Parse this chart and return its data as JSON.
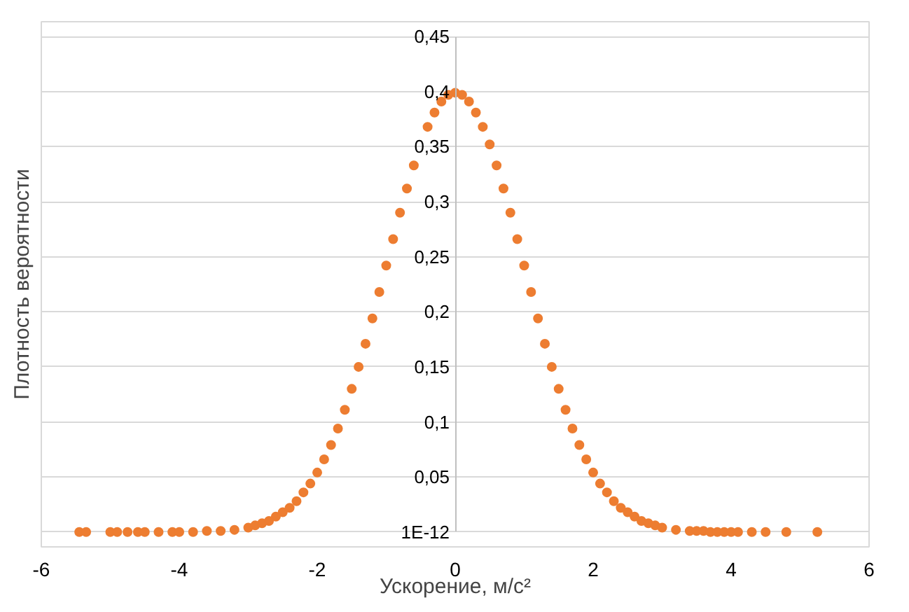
{
  "chart_data": {
    "type": "scatter",
    "xlabel": "Ускорение, м/с²",
    "ylabel": "Плотность вероятности",
    "xlim": [
      -6,
      6
    ],
    "xticks": [
      -6,
      -4,
      -2,
      0,
      2,
      4,
      6
    ],
    "ylim": [
      0,
      0.45
    ],
    "yticks": [
      {
        "value": 1e-12,
        "label": "1E-12"
      },
      {
        "value": 0.05,
        "label": "0,05"
      },
      {
        "value": 0.1,
        "label": "0,1"
      },
      {
        "value": 0.15,
        "label": "0,15"
      },
      {
        "value": 0.2,
        "label": "0,2"
      },
      {
        "value": 0.25,
        "label": "0,25"
      },
      {
        "value": 0.3,
        "label": "0,3"
      },
      {
        "value": 0.35,
        "label": "0,35"
      },
      {
        "value": 0.4,
        "label": "0,4"
      },
      {
        "value": 0.45,
        "label": "0,45"
      }
    ],
    "grid": "y",
    "marker": "circle",
    "series": [
      {
        "color": "#ed7d31",
        "x": [
          -5.45,
          -5.35,
          -5.0,
          -4.9,
          -4.75,
          -4.6,
          -4.5,
          -4.3,
          -4.1,
          -4.0,
          -3.8,
          -3.6,
          -3.4,
          -3.2,
          -3.0,
          -2.9,
          -2.8,
          -2.7,
          -2.6,
          -2.5,
          -2.4,
          -2.3,
          -2.2,
          -2.1,
          -2.0,
          -1.9,
          -1.8,
          -1.7,
          -1.6,
          -1.5,
          -1.4,
          -1.3,
          -1.2,
          -1.1,
          -1.0,
          -0.9,
          -0.8,
          -0.7,
          -0.6,
          -0.4,
          -0.3,
          -0.2,
          -0.1,
          0,
          0.1,
          0.2,
          0.3,
          0.4,
          0.5,
          0.6,
          0.7,
          0.8,
          0.9,
          1.0,
          1.1,
          1.2,
          1.3,
          1.4,
          1.5,
          1.6,
          1.7,
          1.8,
          1.9,
          2.0,
          2.1,
          2.2,
          2.3,
          2.4,
          2.5,
          2.6,
          2.7,
          2.8,
          2.9,
          3.0,
          3.2,
          3.4,
          3.5,
          3.6,
          3.7,
          3.8,
          3.9,
          4.0,
          4.1,
          4.3,
          4.5,
          4.8,
          5.25
        ],
        "values": [
          0,
          0,
          0,
          0,
          0,
          0,
          0,
          0,
          0,
          0,
          0,
          0.001,
          0.001,
          0.002,
          0.004,
          0.006,
          0.008,
          0.01,
          0.014,
          0.018,
          0.022,
          0.028,
          0.036,
          0.044,
          0.054,
          0.066,
          0.079,
          0.094,
          0.111,
          0.13,
          0.15,
          0.171,
          0.194,
          0.218,
          0.242,
          0.266,
          0.29,
          0.312,
          0.333,
          0.368,
          0.381,
          0.391,
          0.397,
          0.399,
          0.397,
          0.391,
          0.381,
          0.368,
          0.352,
          0.333,
          0.312,
          0.29,
          0.266,
          0.242,
          0.218,
          0.194,
          0.171,
          0.15,
          0.13,
          0.111,
          0.094,
          0.079,
          0.066,
          0.054,
          0.044,
          0.036,
          0.028,
          0.022,
          0.018,
          0.014,
          0.01,
          0.008,
          0.006,
          0.004,
          0.002,
          0.001,
          0.001,
          0.001,
          0,
          0,
          0,
          0,
          0,
          0,
          0,
          0,
          0
        ]
      }
    ]
  }
}
